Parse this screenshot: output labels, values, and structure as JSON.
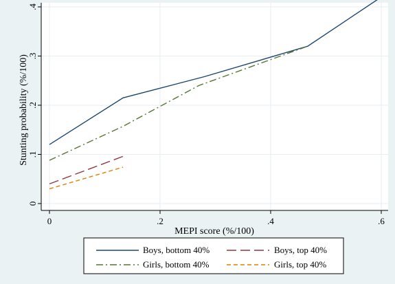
{
  "chart_data": {
    "type": "line",
    "title": "",
    "xlabel": "MEPI score (%/100)",
    "ylabel": "Stunting probability (%/100)",
    "xlim": [
      0,
      0.6
    ],
    "ylim": [
      0,
      0.4
    ],
    "xticks": [
      {
        "value": 0,
        "label": "0"
      },
      {
        "value": 0.2,
        "label": ".2"
      },
      {
        "value": 0.4,
        "label": ".4"
      },
      {
        "value": 0.6,
        "label": ".6"
      }
    ],
    "yticks": [
      {
        "value": 0,
        "label": "0"
      },
      {
        "value": 0.1,
        "label": ".1"
      },
      {
        "value": 0.2,
        "label": ".2"
      },
      {
        "value": 0.3,
        "label": ".3"
      },
      {
        "value": 0.4,
        "label": ".4"
      }
    ],
    "grid": true,
    "legend_position": "bottom",
    "series": [
      {
        "name": "Boys, bottom 40%",
        "color": "#1a476f",
        "dash": "solid",
        "x": [
          0,
          0.133,
          0.28,
          0.467,
          0.6
        ],
        "y": [
          0.12,
          0.215,
          0.258,
          0.32,
          0.42
        ]
      },
      {
        "name": "Boys, top 40%",
        "color": "#90353b",
        "dash": "longdash",
        "x": [
          0,
          0.133
        ],
        "y": [
          0.04,
          0.096
        ]
      },
      {
        "name": "Girls, bottom 40%",
        "color": "#55752f",
        "dash": "dashdot",
        "x": [
          0,
          0.133,
          0.27,
          0.467
        ],
        "y": [
          0.088,
          0.157,
          0.24,
          0.32
        ]
      },
      {
        "name": "Girls, top 40%",
        "color": "#e37e00",
        "dash": "dash",
        "x": [
          0,
          0.133
        ],
        "y": [
          0.03,
          0.074
        ]
      }
    ]
  }
}
